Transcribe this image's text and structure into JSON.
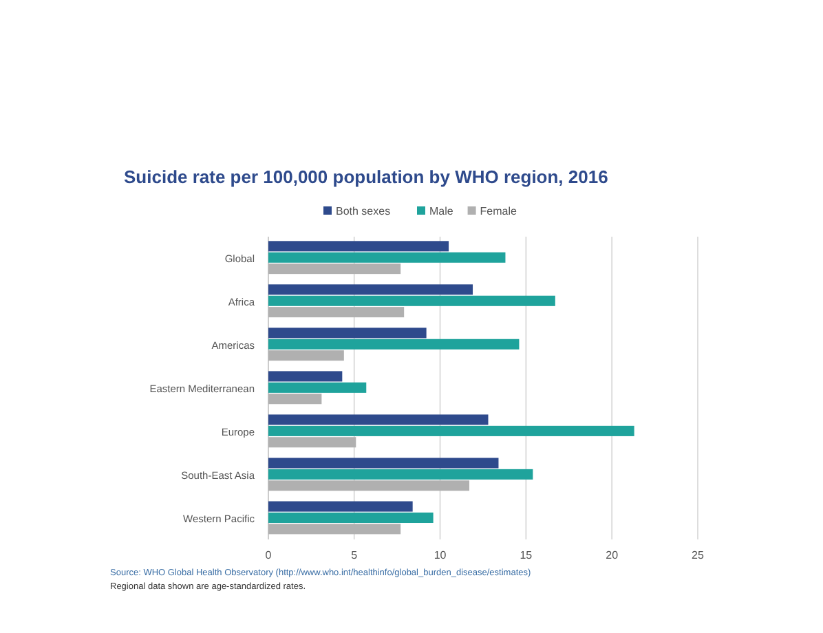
{
  "chart_data": {
    "type": "bar",
    "orientation": "horizontal",
    "title": "Suicide rate per 100,000 population by WHO region, 2016",
    "categories": [
      "Global",
      "Africa",
      "Americas",
      "Eastern Mediterranean",
      "Europe",
      "South-East Asia",
      "Western Pacific"
    ],
    "series": [
      {
        "name": "Both sexes",
        "color": "#2e4a8c",
        "values": [
          10.5,
          11.9,
          9.2,
          4.3,
          12.8,
          13.4,
          8.4
        ]
      },
      {
        "name": "Male",
        "color": "#1fa39c",
        "values": [
          13.8,
          16.7,
          14.6,
          5.7,
          21.3,
          15.4,
          9.6
        ]
      },
      {
        "name": "Female",
        "color": "#b0b0b0",
        "values": [
          7.7,
          7.9,
          4.4,
          3.1,
          5.1,
          11.7,
          7.7
        ]
      }
    ],
    "xlim": [
      0,
      25
    ],
    "xticks": [
      0,
      5,
      10,
      15,
      20,
      25
    ],
    "grid": "x",
    "legend": "top",
    "annotations": [
      "Source: WHO Global Health Observatory (http://www.who.int/healthinfo/global_burden_disease/estimates)",
      "Regional data shown are age-standardized rates."
    ]
  }
}
